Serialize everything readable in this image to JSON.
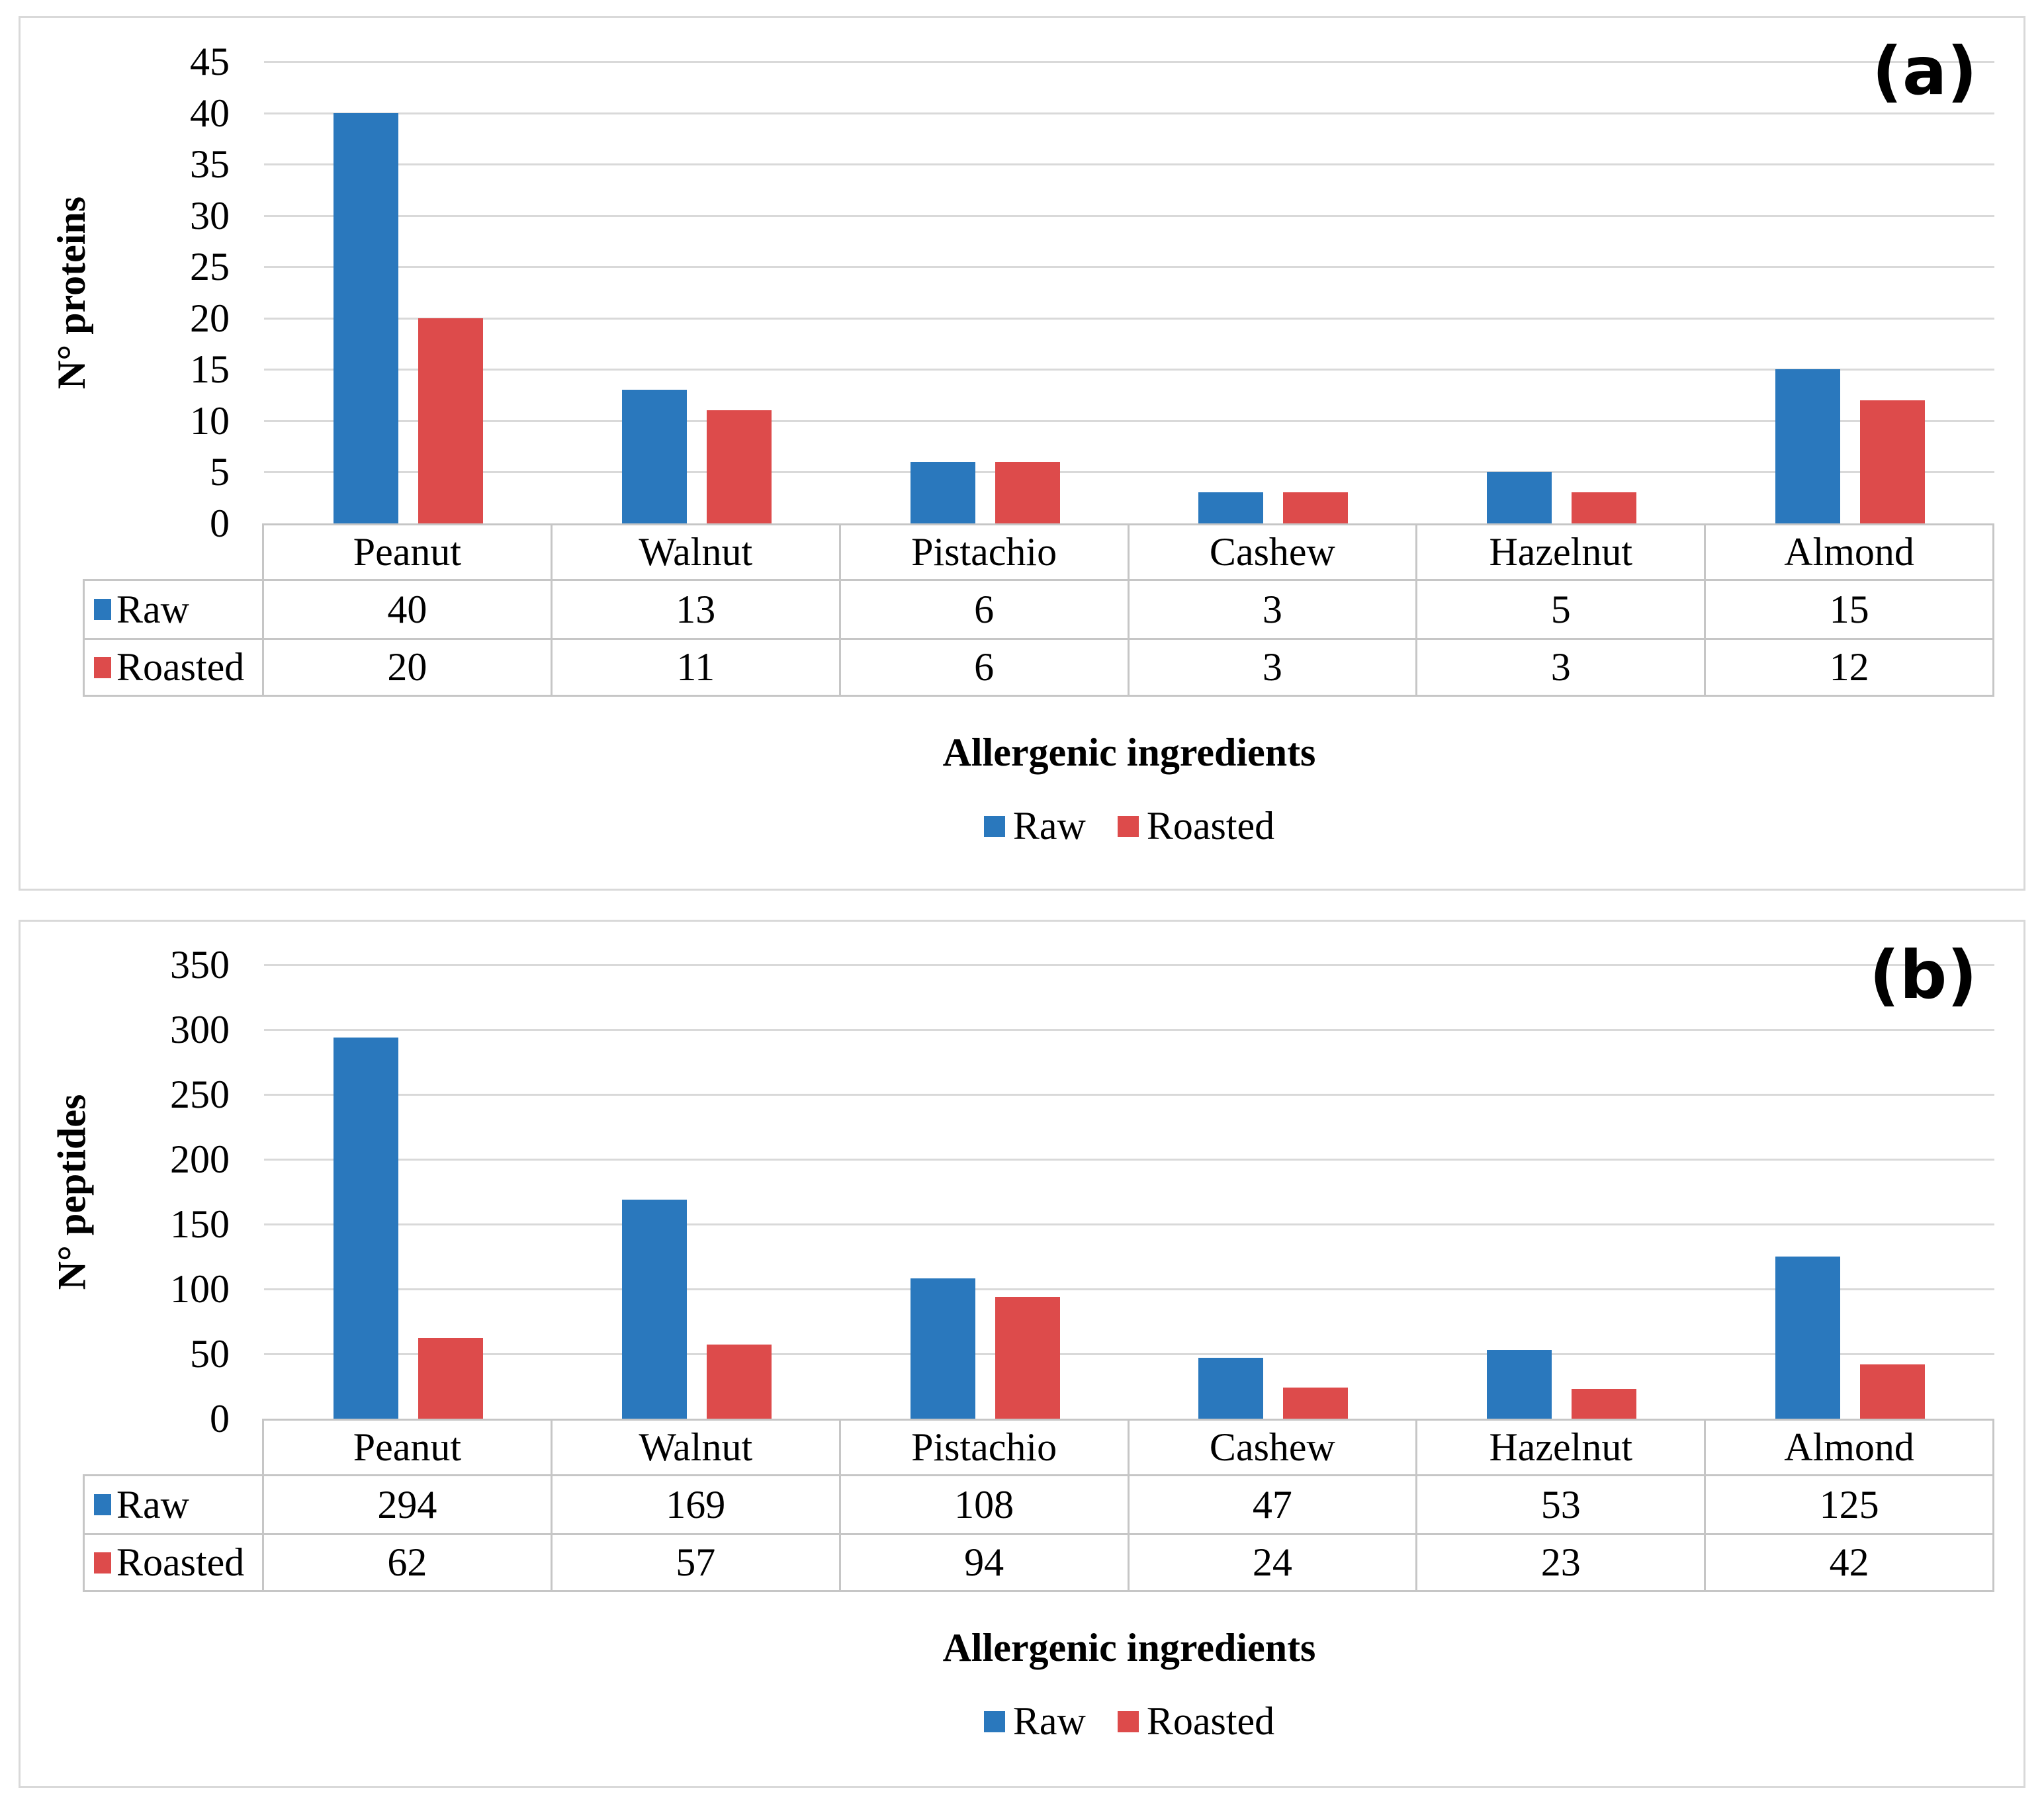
{
  "colors": {
    "raw": "#2A78BD",
    "roasted": "#DD4B4B",
    "gridline": "#D9D9D9",
    "table_border": "#C6C6C6",
    "panel_border": "#D9D9D9",
    "text": "#000000"
  },
  "chart_data": [
    {
      "type": "bar",
      "panel_label": "(a)",
      "ylabel": "N° proteins",
      "xlabel": "Allergenic ingredients",
      "ylim": [
        0,
        45
      ],
      "ytick_step": 5,
      "yticks": [
        45,
        40,
        35,
        30,
        25,
        20,
        15,
        10,
        5,
        0
      ],
      "grid": true,
      "legend_position": "bottom",
      "categories": [
        "Peanut",
        "Walnut",
        "Pistachio",
        "Cashew",
        "Hazelnut",
        "Almond"
      ],
      "series": [
        {
          "name": "Raw",
          "color": "#2A78BD",
          "values": [
            40,
            13,
            6,
            3,
            5,
            15
          ]
        },
        {
          "name": "Roasted",
          "color": "#DD4B4B",
          "values": [
            20,
            11,
            6,
            3,
            3,
            12
          ]
        }
      ],
      "data_table": {
        "columns": [
          "Peanut",
          "Walnut",
          "Pistachio",
          "Cashew",
          "Hazelnut",
          "Almond"
        ],
        "rows": [
          {
            "label": "Raw",
            "values": [
              "40",
              "13",
              "6",
              "3",
              "5",
              "15"
            ]
          },
          {
            "label": "Roasted",
            "values": [
              "20",
              "11",
              "6",
              "3",
              "3",
              "12"
            ]
          }
        ]
      },
      "legend": [
        "Raw",
        "Roasted"
      ]
    },
    {
      "type": "bar",
      "panel_label": "(b)",
      "ylabel": "N° peptides",
      "xlabel": "Allergenic ingredients",
      "ylim": [
        0,
        350
      ],
      "ytick_step": 50,
      "yticks": [
        350,
        300,
        250,
        200,
        150,
        100,
        50,
        0
      ],
      "grid": true,
      "legend_position": "bottom",
      "categories": [
        "Peanut",
        "Walnut",
        "Pistachio",
        "Cashew",
        "Hazelnut",
        "Almond"
      ],
      "series": [
        {
          "name": "Raw",
          "color": "#2A78BD",
          "values": [
            294,
            169,
            108,
            47,
            53,
            125
          ]
        },
        {
          "name": "Roasted",
          "color": "#DD4B4B",
          "values": [
            62,
            57,
            94,
            24,
            23,
            42
          ]
        }
      ],
      "data_table": {
        "columns": [
          "Peanut",
          "Walnut",
          "Pistachio",
          "Cashew",
          "Hazelnut",
          "Almond"
        ],
        "rows": [
          {
            "label": "Raw",
            "values": [
              "294",
              "169",
              "108",
              "47",
              "53",
              "125"
            ]
          },
          {
            "label": "Roasted",
            "values": [
              "62",
              "57",
              "94",
              "24",
              "23",
              "42"
            ]
          }
        ]
      },
      "legend": [
        "Raw",
        "Roasted"
      ]
    }
  ]
}
